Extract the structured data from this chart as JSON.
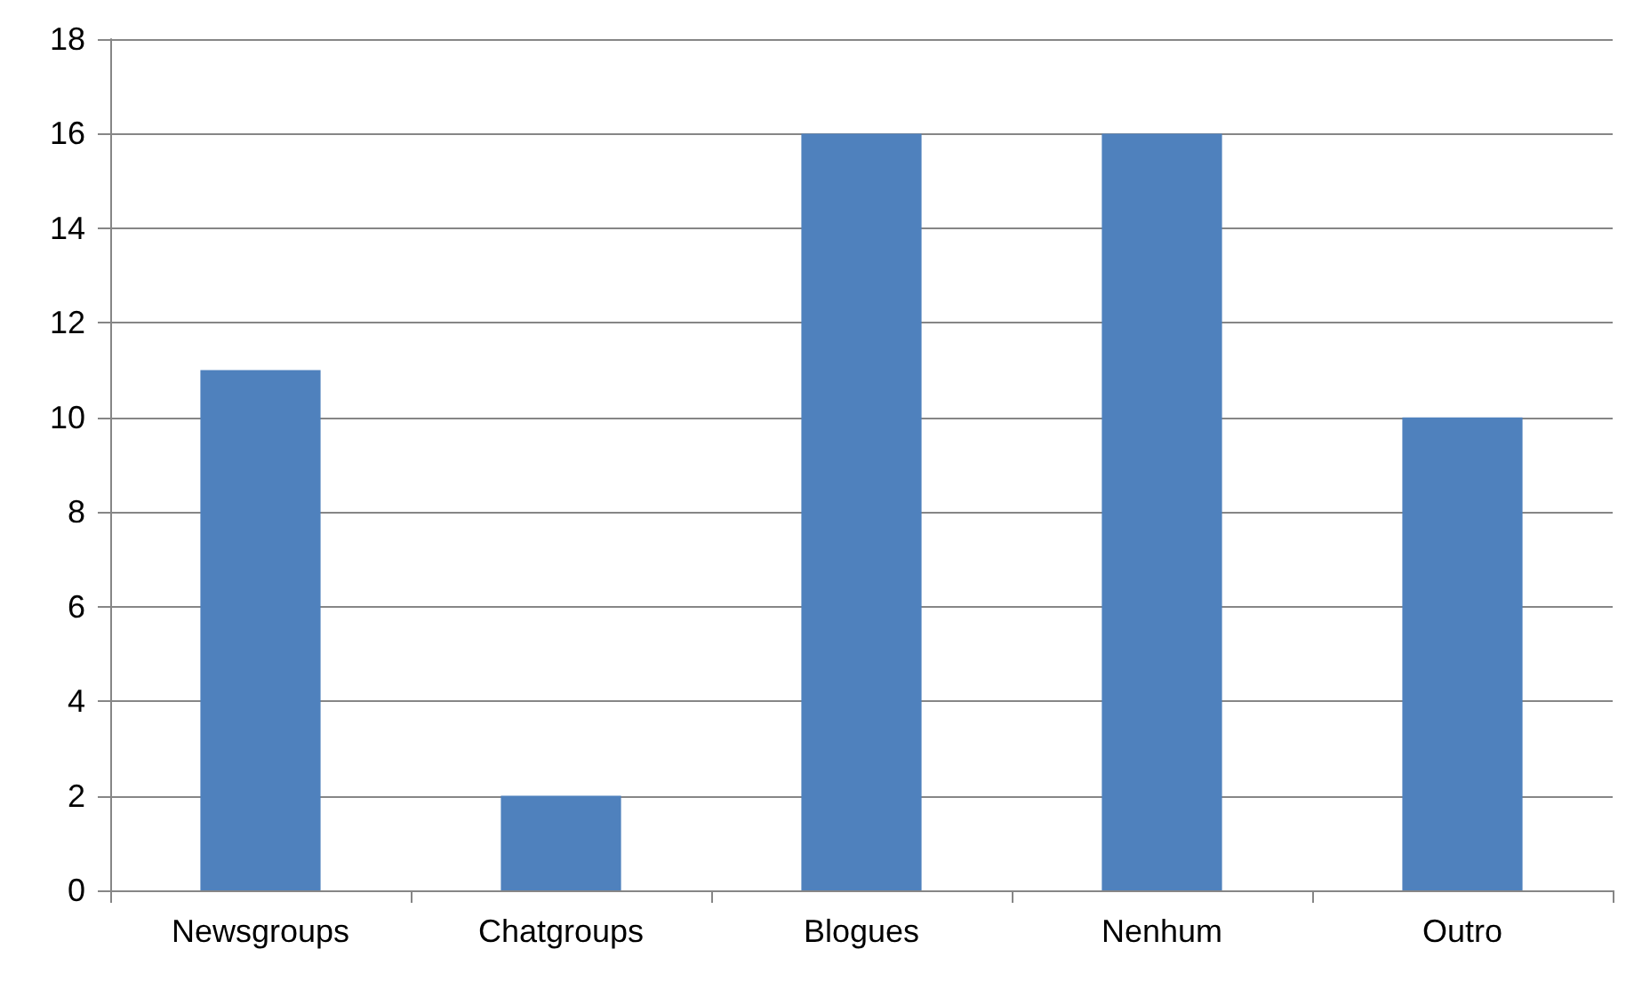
{
  "chart_data": {
    "type": "bar",
    "categories": [
      "Newsgroups",
      "Chatgroups",
      "Blogues",
      "Nenhum",
      "Outro"
    ],
    "values": [
      11,
      2,
      16,
      16,
      10
    ],
    "color": "#4f81bd",
    "ylim": [
      0,
      18
    ],
    "yticks": [
      0,
      2,
      4,
      6,
      8,
      10,
      12,
      14,
      16,
      18
    ],
    "grid": "y"
  }
}
